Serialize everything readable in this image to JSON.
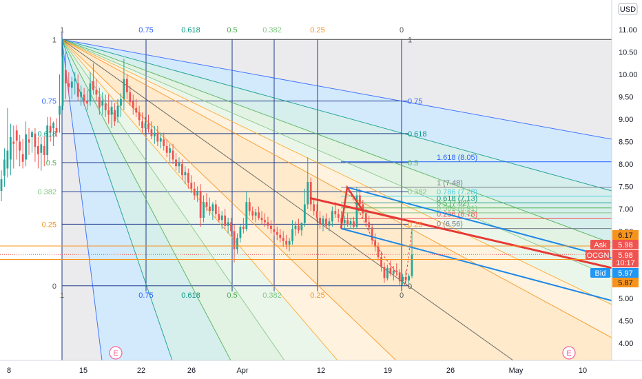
{
  "chart_data": {
    "type": "candlestick",
    "symbol": "OCGN",
    "currency": "USD",
    "y_axis": {
      "ticks": [
        11.0,
        10.5,
        10.0,
        9.5,
        9.0,
        8.5,
        8.0,
        7.5,
        7.0,
        6.5,
        6.0,
        5.5,
        5.0,
        4.5,
        4.0
      ],
      "tick_labels": [
        "11.00",
        "10.50",
        "10.00",
        "9.50",
        "9.00",
        "8.50",
        "8.00",
        "7.50",
        "7.00",
        "6.50",
        "6.00",
        "5.50",
        "5.00",
        "4.50",
        "4.00"
      ],
      "ylim": [
        3.5,
        11.3
      ]
    },
    "x_axis": {
      "labels": [
        "8",
        "15",
        "22",
        "26",
        "Apr",
        "12",
        "19",
        "26",
        "May",
        "10"
      ]
    },
    "price_tags": [
      {
        "name": "orange_upper",
        "label": "",
        "value": "6.17",
        "color": "#f7931a"
      },
      {
        "name": "ask",
        "label": "Ask",
        "value": "5.98",
        "color": "#ef5350"
      },
      {
        "name": "last",
        "label": "OCGN",
        "value": "5.98",
        "color": "#ef5350"
      },
      {
        "name": "countdown",
        "label": "",
        "value": "10:17",
        "color": "#ef5350"
      },
      {
        "name": "bid",
        "label": "Bid",
        "value": "5.97",
        "color": "#2196f3"
      },
      {
        "name": "orange_lower",
        "label": "",
        "value": "5.87",
        "color": "#f7931a"
      }
    ],
    "gann_box": {
      "top_levels": [
        "1",
        "0.75",
        "0.618",
        "0.5",
        "0.382",
        "0.25",
        "0"
      ],
      "left_levels": [
        "1",
        "0.75",
        "0.618",
        "0.5",
        "0.382",
        "0.25",
        "0"
      ],
      "right_levels": [
        "1",
        "0.75",
        "0.618",
        "0.5",
        "0.382",
        "0.25",
        "0"
      ],
      "bottom_levels": [
        "1",
        "0.75",
        "0.618",
        "0.5",
        "0.382",
        "0.25",
        "0"
      ],
      "price_high": 10.78,
      "price_low": 5.28
    },
    "fib_retracement": [
      {
        "level": "1.618",
        "value": "8.05"
      },
      {
        "level": "1",
        "value": "7.48"
      },
      {
        "level": "0.786",
        "value": "7.28"
      },
      {
        "level": "0.618",
        "value": "7.13"
      },
      {
        "level": "0.5",
        "value": "7.02"
      },
      {
        "level": "0.382",
        "value": "6.91"
      },
      {
        "level": "0.236",
        "value": "6.78"
      },
      {
        "level": "0",
        "value": "6.56"
      }
    ],
    "event_markers": [
      "E",
      "E"
    ],
    "candles": [
      [
        7.4,
        7.86,
        7.17,
        7.66
      ],
      [
        7.74,
        8.35,
        7.49,
        8.1
      ],
      [
        7.9,
        9.25,
        7.7,
        8.3
      ],
      [
        8.1,
        8.9,
        7.75,
        8.6
      ],
      [
        8.5,
        8.86,
        7.9,
        8.45
      ],
      [
        8.75,
        8.87,
        8.1,
        8.52
      ],
      [
        8.5,
        8.65,
        7.95,
        8.3
      ],
      [
        8.22,
        8.56,
        7.9,
        8.05
      ],
      [
        8.1,
        8.95,
        7.95,
        8.66
      ],
      [
        8.55,
        8.8,
        8.2,
        8.48
      ],
      [
        8.6,
        8.75,
        8.25,
        8.71
      ],
      [
        8.68,
        8.8,
        8.05,
        8.38
      ],
      [
        8.4,
        8.6,
        7.9,
        8.22
      ],
      [
        8.25,
        8.6,
        7.85,
        8.44
      ],
      [
        8.4,
        8.62,
        7.95,
        8.2
      ],
      [
        8.2,
        9.05,
        8.05,
        8.86
      ],
      [
        8.85,
        9.05,
        8.5,
        8.7
      ],
      [
        8.8,
        8.95,
        8.4,
        8.92
      ],
      [
        8.8,
        9.02,
        8.6,
        8.7
      ],
      [
        9.1,
        10.0,
        8.7,
        9.3
      ],
      [
        9.3,
        10.8,
        9.2,
        10.4
      ],
      [
        10.1,
        10.5,
        9.45,
        9.8
      ],
      [
        9.8,
        10.05,
        9.55,
        9.72
      ],
      [
        9.7,
        9.95,
        9.45,
        9.84
      ],
      [
        9.85,
        10.05,
        9.55,
        9.9
      ],
      [
        9.8,
        10.0,
        9.4,
        9.5
      ],
      [
        9.5,
        9.75,
        9.3,
        9.6
      ],
      [
        9.55,
        9.7,
        9.3,
        9.4
      ],
      [
        9.4,
        9.65,
        9.2,
        9.35
      ],
      [
        9.4,
        10.05,
        9.3,
        9.8
      ],
      [
        9.85,
        10.25,
        9.55,
        9.65
      ],
      [
        9.65,
        9.9,
        9.4,
        9.55
      ],
      [
        9.5,
        9.7,
        9.1,
        9.26
      ],
      [
        9.3,
        9.6,
        9.1,
        9.4
      ],
      [
        9.35,
        9.55,
        9.05,
        9.2
      ],
      [
        9.2,
        9.55,
        8.9,
        9.1
      ],
      [
        9.1,
        9.4,
        8.8,
        9.28
      ],
      [
        9.2,
        9.36,
        8.85,
        8.95
      ],
      [
        9.05,
        9.45,
        8.92,
        9.3
      ],
      [
        9.3,
        9.58,
        9.05,
        9.45
      ],
      [
        9.45,
        10.35,
        9.2,
        9.9
      ],
      [
        9.9,
        10.0,
        9.45,
        9.6
      ],
      [
        9.6,
        9.75,
        9.3,
        9.38
      ],
      [
        9.4,
        9.55,
        9.1,
        9.25
      ],
      [
        9.25,
        9.45,
        9.05,
        9.15
      ],
      [
        9.15,
        9.3,
        8.85,
        8.98
      ],
      [
        8.95,
        9.15,
        8.7,
        8.8
      ],
      [
        8.8,
        9.05,
        8.65,
        8.92
      ],
      [
        8.9,
        9.1,
        8.7,
        8.78
      ],
      [
        8.78,
        8.95,
        8.55,
        8.62
      ],
      [
        8.62,
        8.85,
        8.45,
        8.7
      ],
      [
        8.7,
        8.85,
        8.4,
        8.5
      ],
      [
        8.5,
        8.7,
        8.35,
        8.58
      ],
      [
        8.55,
        8.7,
        8.3,
        8.4
      ],
      [
        8.4,
        8.55,
        8.15,
        8.25
      ],
      [
        8.25,
        8.45,
        8.05,
        8.35
      ],
      [
        8.3,
        8.45,
        8.0,
        8.1
      ],
      [
        8.1,
        8.25,
        7.85,
        7.95
      ],
      [
        7.95,
        8.15,
        7.8,
        8.02
      ],
      [
        8.0,
        8.1,
        7.65,
        7.75
      ],
      [
        7.75,
        7.95,
        7.55,
        7.82
      ],
      [
        7.8,
        7.9,
        7.45,
        7.58
      ],
      [
        7.58,
        7.75,
        7.35,
        7.45
      ],
      [
        7.45,
        7.6,
        7.2,
        7.3
      ],
      [
        7.3,
        7.5,
        7.15,
        7.4
      ],
      [
        7.4,
        7.55,
        6.6,
        6.8
      ],
      [
        6.8,
        7.3,
        6.7,
        7.15
      ],
      [
        7.15,
        7.35,
        6.95,
        7.05
      ],
      [
        7.05,
        7.25,
        6.85,
        6.95
      ],
      [
        6.95,
        7.15,
        6.75,
        7.1
      ],
      [
        7.1,
        7.2,
        6.8,
        6.88
      ],
      [
        6.88,
        7.05,
        6.7,
        6.75
      ],
      [
        6.75,
        6.95,
        6.55,
        6.85
      ],
      [
        6.85,
        7.0,
        6.55,
        6.62
      ],
      [
        6.62,
        6.8,
        6.45,
        6.7
      ],
      [
        6.7,
        6.8,
        6.4,
        6.5
      ],
      [
        6.5,
        6.65,
        5.8,
        6.1
      ],
      [
        6.1,
        6.45,
        6.0,
        6.35
      ],
      [
        6.35,
        6.65,
        6.25,
        6.6
      ],
      [
        6.6,
        6.8,
        6.45,
        6.55
      ],
      [
        6.55,
        7.4,
        6.5,
        7.15
      ],
      [
        7.15,
        7.25,
        6.85,
        6.95
      ],
      [
        6.95,
        7.05,
        6.75,
        6.85
      ],
      [
        6.85,
        7.0,
        6.7,
        6.92
      ],
      [
        6.92,
        7.05,
        6.75,
        6.8
      ],
      [
        6.8,
        6.95,
        6.65,
        6.75
      ],
      [
        6.75,
        6.9,
        6.6,
        6.7
      ],
      [
        6.7,
        6.82,
        6.55,
        6.62
      ],
      [
        6.62,
        6.75,
        6.45,
        6.55
      ],
      [
        6.55,
        6.7,
        6.4,
        6.48
      ],
      [
        6.48,
        6.6,
        6.3,
        6.42
      ],
      [
        6.42,
        6.55,
        6.25,
        6.35
      ],
      [
        6.35,
        6.5,
        6.15,
        6.28
      ],
      [
        6.28,
        6.42,
        6.1,
        6.2
      ],
      [
        6.2,
        6.35,
        6.05,
        6.28
      ],
      [
        6.28,
        6.75,
        6.2,
        6.55
      ],
      [
        6.55,
        6.72,
        6.4,
        6.62
      ],
      [
        6.62,
        6.78,
        6.45,
        6.52
      ],
      [
        6.52,
        6.7,
        6.4,
        6.68
      ],
      [
        6.68,
        7.45,
        6.6,
        7.1
      ],
      [
        7.1,
        8.15,
        7.0,
        7.6
      ],
      [
        7.6,
        7.7,
        6.95,
        7.1
      ],
      [
        7.1,
        7.25,
        6.85,
        6.95
      ],
      [
        6.95,
        7.1,
        6.7,
        6.8
      ],
      [
        6.8,
        6.95,
        6.55,
        6.65
      ],
      [
        6.65,
        6.85,
        6.5,
        6.78
      ],
      [
        6.78,
        6.9,
        6.55,
        6.62
      ],
      [
        6.62,
        6.8,
        6.5,
        6.72
      ],
      [
        6.72,
        7.05,
        6.6,
        6.95
      ],
      [
        6.95,
        7.15,
        6.8,
        6.88
      ],
      [
        6.88,
        7.0,
        6.7,
        6.8
      ],
      [
        6.8,
        6.95,
        6.6,
        6.68
      ],
      [
        6.68,
        6.85,
        6.55,
        6.75
      ],
      [
        6.75,
        6.9,
        6.6,
        6.65
      ],
      [
        6.65,
        6.8,
        6.55,
        6.72
      ],
      [
        6.72,
        6.82,
        6.55,
        6.6
      ],
      [
        6.6,
        7.48,
        6.56,
        7.3
      ],
      [
        7.3,
        7.45,
        7.0,
        7.1
      ],
      [
        7.1,
        7.2,
        6.8,
        6.9
      ],
      [
        6.9,
        7.0,
        6.6,
        6.7
      ],
      [
        6.7,
        6.85,
        6.5,
        6.58
      ],
      [
        6.58,
        6.65,
        6.2,
        6.3
      ],
      [
        6.3,
        6.45,
        6.05,
        6.15
      ],
      [
        6.15,
        6.25,
        5.85,
        5.92
      ],
      [
        5.92,
        6.05,
        5.6,
        5.7
      ],
      [
        5.7,
        5.8,
        5.35,
        5.45
      ],
      [
        5.45,
        5.75,
        5.4,
        5.68
      ],
      [
        5.68,
        5.85,
        5.5,
        5.55
      ],
      [
        5.55,
        5.72,
        5.4,
        5.62
      ],
      [
        5.62,
        5.78,
        5.5,
        5.58
      ],
      [
        5.58,
        5.65,
        5.3,
        5.38
      ],
      [
        5.38,
        5.55,
        5.28,
        5.48
      ],
      [
        5.48,
        5.62,
        5.35,
        5.4
      ],
      [
        5.4,
        5.55,
        5.3,
        5.5
      ],
      [
        5.5,
        6.55,
        5.45,
        5.98
      ]
    ]
  }
}
